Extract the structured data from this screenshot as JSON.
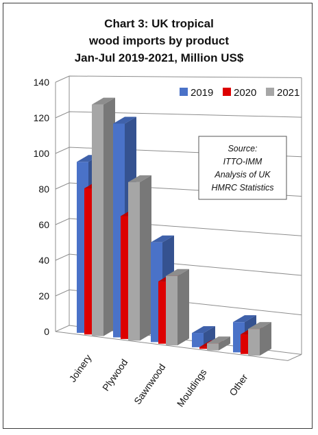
{
  "chart_data": {
    "type": "bar",
    "title_lines": [
      "Chart 3: UK tropical",
      "wood imports by product",
      "Jan-Jul 2019-2021, Million US$"
    ],
    "categories": [
      "Joinery",
      "Plywood",
      "Sawnwood",
      "Mouldings",
      "Other"
    ],
    "series": [
      {
        "name": "2019",
        "values": [
          96,
          120,
          56,
          8,
          17
        ],
        "color": "#4a72c8"
      },
      {
        "name": "2020",
        "values": [
          82,
          69,
          35,
          1,
          11
        ],
        "color": "#dd0000"
      },
      {
        "name": "2021",
        "values": [
          130,
          89,
          39,
          4,
          15
        ],
        "color": "#a6a6a6"
      }
    ],
    "yticks": [
      0,
      20,
      40,
      60,
      80,
      100,
      120,
      140
    ],
    "ylim": [
      0,
      140
    ],
    "grid": true,
    "legend_position": "top-right",
    "note_lines": [
      "Source:",
      "ITTO-IMM",
      "Analysis of UK",
      "HMRC Statistics"
    ]
  }
}
